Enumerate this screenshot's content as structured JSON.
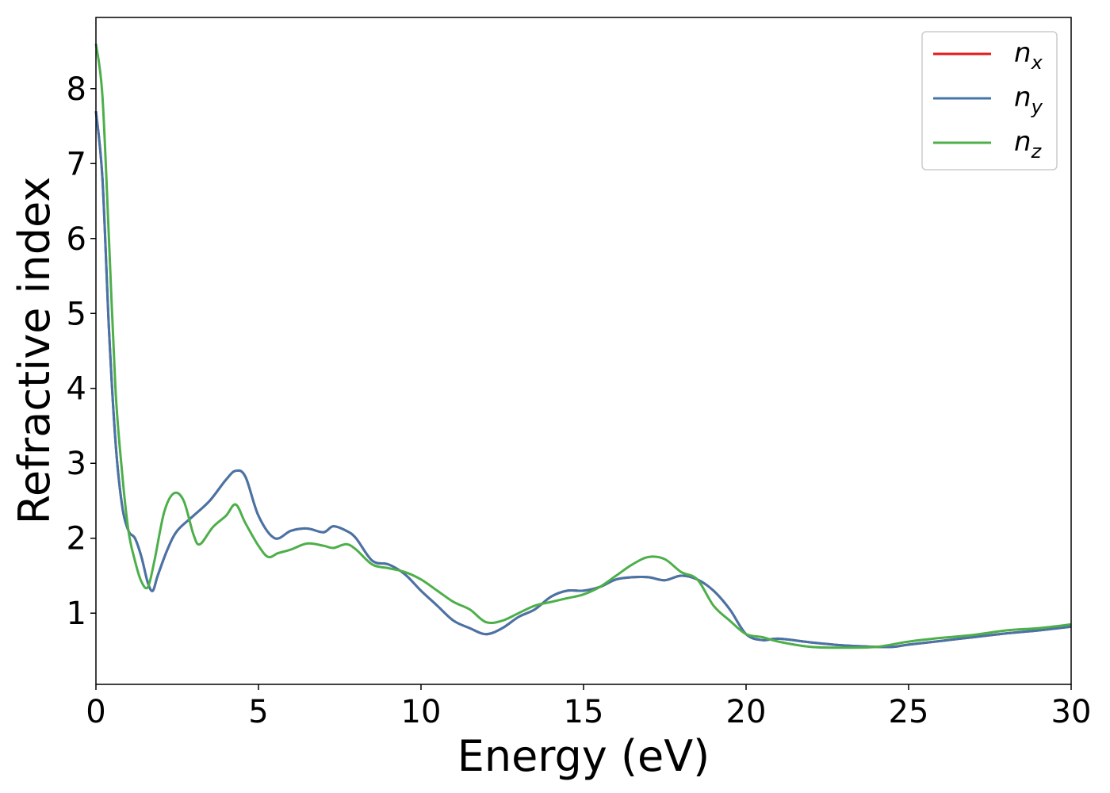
{
  "chart_data": {
    "type": "line",
    "xlabel": "Energy (eV)",
    "ylabel": "Refractive index",
    "xlim": [
      0,
      30
    ],
    "ylim": [
      0.05,
      8.95
    ],
    "xticks": [
      "0",
      "5",
      "10",
      "15",
      "20",
      "25",
      "30"
    ],
    "yticks": [
      "1",
      "2",
      "3",
      "4",
      "5",
      "6",
      "7",
      "8"
    ],
    "grid": false,
    "legend_position": "top-right",
    "series": [
      {
        "name": "n",
        "sub": "x",
        "color": "#e41a1c",
        "points": [
          [
            0,
            7.7
          ],
          [
            0.2,
            6.8
          ],
          [
            0.4,
            4.8
          ],
          [
            0.6,
            3.3
          ],
          [
            0.8,
            2.45
          ],
          [
            1.0,
            2.1
          ],
          [
            1.2,
            2.0
          ],
          [
            1.4,
            1.75
          ],
          [
            1.6,
            1.4
          ],
          [
            1.75,
            1.3
          ],
          [
            1.9,
            1.5
          ],
          [
            2.2,
            1.85
          ],
          [
            2.5,
            2.1
          ],
          [
            3.0,
            2.3
          ],
          [
            3.5,
            2.5
          ],
          [
            4.0,
            2.78
          ],
          [
            4.3,
            2.9
          ],
          [
            4.6,
            2.82
          ],
          [
            5.0,
            2.3
          ],
          [
            5.5,
            2.0
          ],
          [
            6.0,
            2.1
          ],
          [
            6.5,
            2.13
          ],
          [
            7.0,
            2.08
          ],
          [
            7.3,
            2.16
          ],
          [
            7.7,
            2.1
          ],
          [
            8.0,
            2.0
          ],
          [
            8.5,
            1.7
          ],
          [
            9.0,
            1.65
          ],
          [
            9.5,
            1.52
          ],
          [
            10.0,
            1.3
          ],
          [
            10.5,
            1.1
          ],
          [
            11.0,
            0.9
          ],
          [
            11.5,
            0.8
          ],
          [
            12.0,
            0.72
          ],
          [
            12.5,
            0.8
          ],
          [
            13.0,
            0.95
          ],
          [
            13.5,
            1.05
          ],
          [
            14.0,
            1.22
          ],
          [
            14.5,
            1.3
          ],
          [
            15.0,
            1.3
          ],
          [
            15.5,
            1.35
          ],
          [
            16.0,
            1.45
          ],
          [
            16.5,
            1.48
          ],
          [
            17.0,
            1.48
          ],
          [
            17.5,
            1.44
          ],
          [
            18.0,
            1.5
          ],
          [
            18.5,
            1.45
          ],
          [
            19.0,
            1.3
          ],
          [
            19.5,
            1.05
          ],
          [
            20.0,
            0.72
          ],
          [
            20.5,
            0.64
          ],
          [
            21.0,
            0.66
          ],
          [
            22.0,
            0.61
          ],
          [
            23.0,
            0.57
          ],
          [
            24.0,
            0.55
          ],
          [
            24.5,
            0.55
          ],
          [
            25.0,
            0.58
          ],
          [
            26.0,
            0.63
          ],
          [
            27.0,
            0.68
          ],
          [
            28.0,
            0.73
          ],
          [
            29.0,
            0.77
          ],
          [
            30.0,
            0.82
          ]
        ]
      },
      {
        "name": "n",
        "sub": "y",
        "color": "#4575a8",
        "points": [
          [
            0,
            7.7
          ],
          [
            0.2,
            6.8
          ],
          [
            0.4,
            4.8
          ],
          [
            0.6,
            3.3
          ],
          [
            0.8,
            2.45
          ],
          [
            1.0,
            2.1
          ],
          [
            1.2,
            2.0
          ],
          [
            1.4,
            1.75
          ],
          [
            1.6,
            1.4
          ],
          [
            1.75,
            1.3
          ],
          [
            1.9,
            1.5
          ],
          [
            2.2,
            1.85
          ],
          [
            2.5,
            2.1
          ],
          [
            3.0,
            2.3
          ],
          [
            3.5,
            2.5
          ],
          [
            4.0,
            2.78
          ],
          [
            4.3,
            2.9
          ],
          [
            4.6,
            2.82
          ],
          [
            5.0,
            2.3
          ],
          [
            5.5,
            2.0
          ],
          [
            6.0,
            2.1
          ],
          [
            6.5,
            2.13
          ],
          [
            7.0,
            2.08
          ],
          [
            7.3,
            2.16
          ],
          [
            7.7,
            2.1
          ],
          [
            8.0,
            2.0
          ],
          [
            8.5,
            1.7
          ],
          [
            9.0,
            1.65
          ],
          [
            9.5,
            1.52
          ],
          [
            10.0,
            1.3
          ],
          [
            10.5,
            1.1
          ],
          [
            11.0,
            0.9
          ],
          [
            11.5,
            0.8
          ],
          [
            12.0,
            0.72
          ],
          [
            12.5,
            0.8
          ],
          [
            13.0,
            0.95
          ],
          [
            13.5,
            1.05
          ],
          [
            14.0,
            1.22
          ],
          [
            14.5,
            1.3
          ],
          [
            15.0,
            1.3
          ],
          [
            15.5,
            1.35
          ],
          [
            16.0,
            1.45
          ],
          [
            16.5,
            1.48
          ],
          [
            17.0,
            1.48
          ],
          [
            17.5,
            1.44
          ],
          [
            18.0,
            1.5
          ],
          [
            18.5,
            1.45
          ],
          [
            19.0,
            1.3
          ],
          [
            19.5,
            1.05
          ],
          [
            20.0,
            0.72
          ],
          [
            20.5,
            0.64
          ],
          [
            21.0,
            0.66
          ],
          [
            22.0,
            0.61
          ],
          [
            23.0,
            0.57
          ],
          [
            24.0,
            0.55
          ],
          [
            24.5,
            0.55
          ],
          [
            25.0,
            0.58
          ],
          [
            26.0,
            0.63
          ],
          [
            27.0,
            0.68
          ],
          [
            28.0,
            0.73
          ],
          [
            29.0,
            0.77
          ],
          [
            30.0,
            0.82
          ]
        ]
      },
      {
        "name": "n",
        "sub": "z",
        "color": "#4daf4a",
        "points": [
          [
            0,
            8.6
          ],
          [
            0.2,
            7.9
          ],
          [
            0.4,
            6.0
          ],
          [
            0.6,
            4.0
          ],
          [
            0.8,
            2.9
          ],
          [
            1.0,
            2.1
          ],
          [
            1.2,
            1.7
          ],
          [
            1.4,
            1.42
          ],
          [
            1.6,
            1.35
          ],
          [
            1.8,
            1.7
          ],
          [
            2.1,
            2.35
          ],
          [
            2.4,
            2.6
          ],
          [
            2.7,
            2.5
          ],
          [
            3.0,
            2.05
          ],
          [
            3.2,
            1.92
          ],
          [
            3.6,
            2.15
          ],
          [
            4.0,
            2.3
          ],
          [
            4.3,
            2.45
          ],
          [
            4.6,
            2.2
          ],
          [
            5.0,
            1.9
          ],
          [
            5.3,
            1.75
          ],
          [
            5.6,
            1.8
          ],
          [
            6.0,
            1.85
          ],
          [
            6.5,
            1.93
          ],
          [
            7.0,
            1.9
          ],
          [
            7.3,
            1.87
          ],
          [
            7.7,
            1.92
          ],
          [
            8.0,
            1.85
          ],
          [
            8.5,
            1.65
          ],
          [
            9.0,
            1.6
          ],
          [
            9.5,
            1.55
          ],
          [
            10.0,
            1.45
          ],
          [
            10.5,
            1.3
          ],
          [
            11.0,
            1.15
          ],
          [
            11.5,
            1.05
          ],
          [
            12.0,
            0.88
          ],
          [
            12.5,
            0.9
          ],
          [
            13.0,
            1.0
          ],
          [
            13.5,
            1.1
          ],
          [
            14.0,
            1.15
          ],
          [
            14.5,
            1.2
          ],
          [
            15.0,
            1.25
          ],
          [
            15.5,
            1.35
          ],
          [
            16.0,
            1.5
          ],
          [
            16.5,
            1.65
          ],
          [
            17.0,
            1.75
          ],
          [
            17.5,
            1.72
          ],
          [
            18.0,
            1.55
          ],
          [
            18.5,
            1.45
          ],
          [
            19.0,
            1.1
          ],
          [
            19.5,
            0.9
          ],
          [
            20.0,
            0.72
          ],
          [
            20.5,
            0.68
          ],
          [
            21.0,
            0.62
          ],
          [
            22.0,
            0.55
          ],
          [
            23.0,
            0.54
          ],
          [
            24.0,
            0.55
          ],
          [
            25.0,
            0.62
          ],
          [
            26.0,
            0.67
          ],
          [
            27.0,
            0.71
          ],
          [
            28.0,
            0.77
          ],
          [
            29.0,
            0.8
          ],
          [
            30.0,
            0.85
          ]
        ]
      }
    ]
  }
}
